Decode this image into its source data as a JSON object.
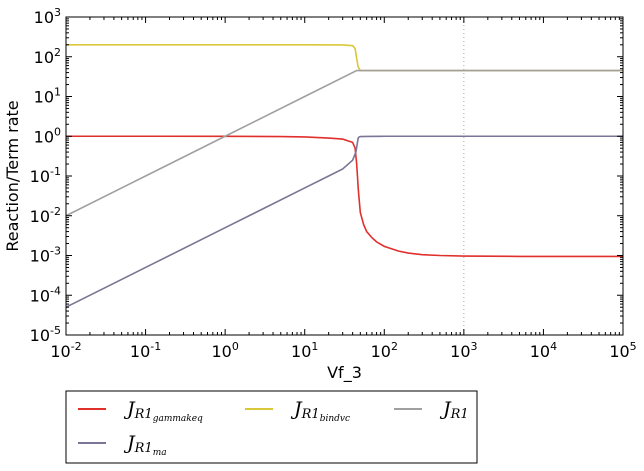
{
  "chart_data": {
    "type": "line",
    "title": "",
    "xlabel": "Vf_3",
    "ylabel": "Reaction/Term rate",
    "xscale": "log",
    "yscale": "log",
    "xlim": [
      0.01,
      100000
    ],
    "ylim": [
      1e-05,
      1000
    ],
    "x_ticks": [
      {
        "value": 0.01,
        "base": "10",
        "exp": "-2"
      },
      {
        "value": 0.1,
        "base": "10",
        "exp": "-1"
      },
      {
        "value": 1,
        "base": "10",
        "exp": "0"
      },
      {
        "value": 10,
        "base": "10",
        "exp": "1"
      },
      {
        "value": 100,
        "base": "10",
        "exp": "2"
      },
      {
        "value": 1000,
        "base": "10",
        "exp": "3"
      },
      {
        "value": 10000,
        "base": "10",
        "exp": "4"
      },
      {
        "value": 100000,
        "base": "10",
        "exp": "5"
      }
    ],
    "y_ticks": [
      {
        "value": 1e-05,
        "base": "10",
        "exp": "-5"
      },
      {
        "value": 0.0001,
        "base": "10",
        "exp": "-4"
      },
      {
        "value": 0.001,
        "base": "10",
        "exp": "-3"
      },
      {
        "value": 0.01,
        "base": "10",
        "exp": "-2"
      },
      {
        "value": 0.1,
        "base": "10",
        "exp": "-1"
      },
      {
        "value": 1,
        "base": "10",
        "exp": "0"
      },
      {
        "value": 10,
        "base": "10",
        "exp": "1"
      },
      {
        "value": 100,
        "base": "10",
        "exp": "2"
      },
      {
        "value": 1000,
        "base": "10",
        "exp": "3"
      }
    ],
    "vertical_reference_line": {
      "x": 1000,
      "style": "dotted",
      "color": "#aaaaaa"
    },
    "legend_placement": "below-left",
    "series": [
      {
        "name": "J_R1_gammakeq",
        "legend_main": "J",
        "legend_sub": "R1",
        "legend_subsub": "gammakeq",
        "color": "#e0302c",
        "x": [
          0.01,
          0.1,
          1,
          5,
          10,
          20,
          30,
          40,
          43,
          45,
          46,
          47,
          48,
          50,
          55,
          60,
          70,
          80,
          100,
          150,
          200,
          300,
          500,
          1000,
          2000,
          5000,
          10000,
          100000
        ],
        "y": [
          1.0,
          1.0,
          0.995,
          0.98,
          0.96,
          0.9,
          0.85,
          0.7,
          0.5,
          0.2,
          0.1,
          0.05,
          0.03,
          0.012,
          0.006,
          0.004,
          0.0028,
          0.0022,
          0.0017,
          0.0013,
          0.00115,
          0.00105,
          0.001,
          0.00097,
          0.00096,
          0.00095,
          0.00095,
          0.00095
        ]
      },
      {
        "name": "J_R1_bindvc",
        "legend_main": "J",
        "legend_sub": "R1",
        "legend_subsub": "bindvc",
        "color": "#d9c83a",
        "x": [
          0.01,
          0.1,
          1,
          10,
          30,
          40,
          43,
          45,
          47,
          50,
          100,
          1000,
          100000
        ],
        "y": [
          200,
          200,
          200,
          200,
          198,
          190,
          160,
          90,
          55,
          45,
          45,
          45,
          45
        ]
      },
      {
        "name": "J_R1",
        "legend_main": "J",
        "legend_sub": "R1",
        "legend_subsub": "",
        "color": "#a0a0a0",
        "x": [
          0.01,
          0.1,
          1,
          10,
          45,
          50,
          100,
          1000,
          100000
        ],
        "y": [
          0.01,
          0.1,
          1,
          10,
          45,
          45,
          45,
          45,
          45
        ]
      },
      {
        "name": "J_R1_ma",
        "legend_main": "J",
        "legend_sub": "R1",
        "legend_subsub": "ma",
        "color": "#7b7496",
        "x": [
          0.01,
          0.1,
          1,
          10,
          20,
          30,
          40,
          44,
          46,
          47,
          48,
          50,
          60,
          100,
          1000,
          100000
        ],
        "y": [
          5e-05,
          0.0005,
          0.005,
          0.05,
          0.1,
          0.15,
          0.25,
          0.4,
          0.7,
          0.9,
          0.95,
          0.98,
          0.99,
          1.0,
          1.0,
          1.0
        ]
      }
    ],
    "legend_order": [
      "J_R1_gammakeq",
      "J_R1_bindvc",
      "J_R1",
      "J_R1_ma"
    ]
  }
}
